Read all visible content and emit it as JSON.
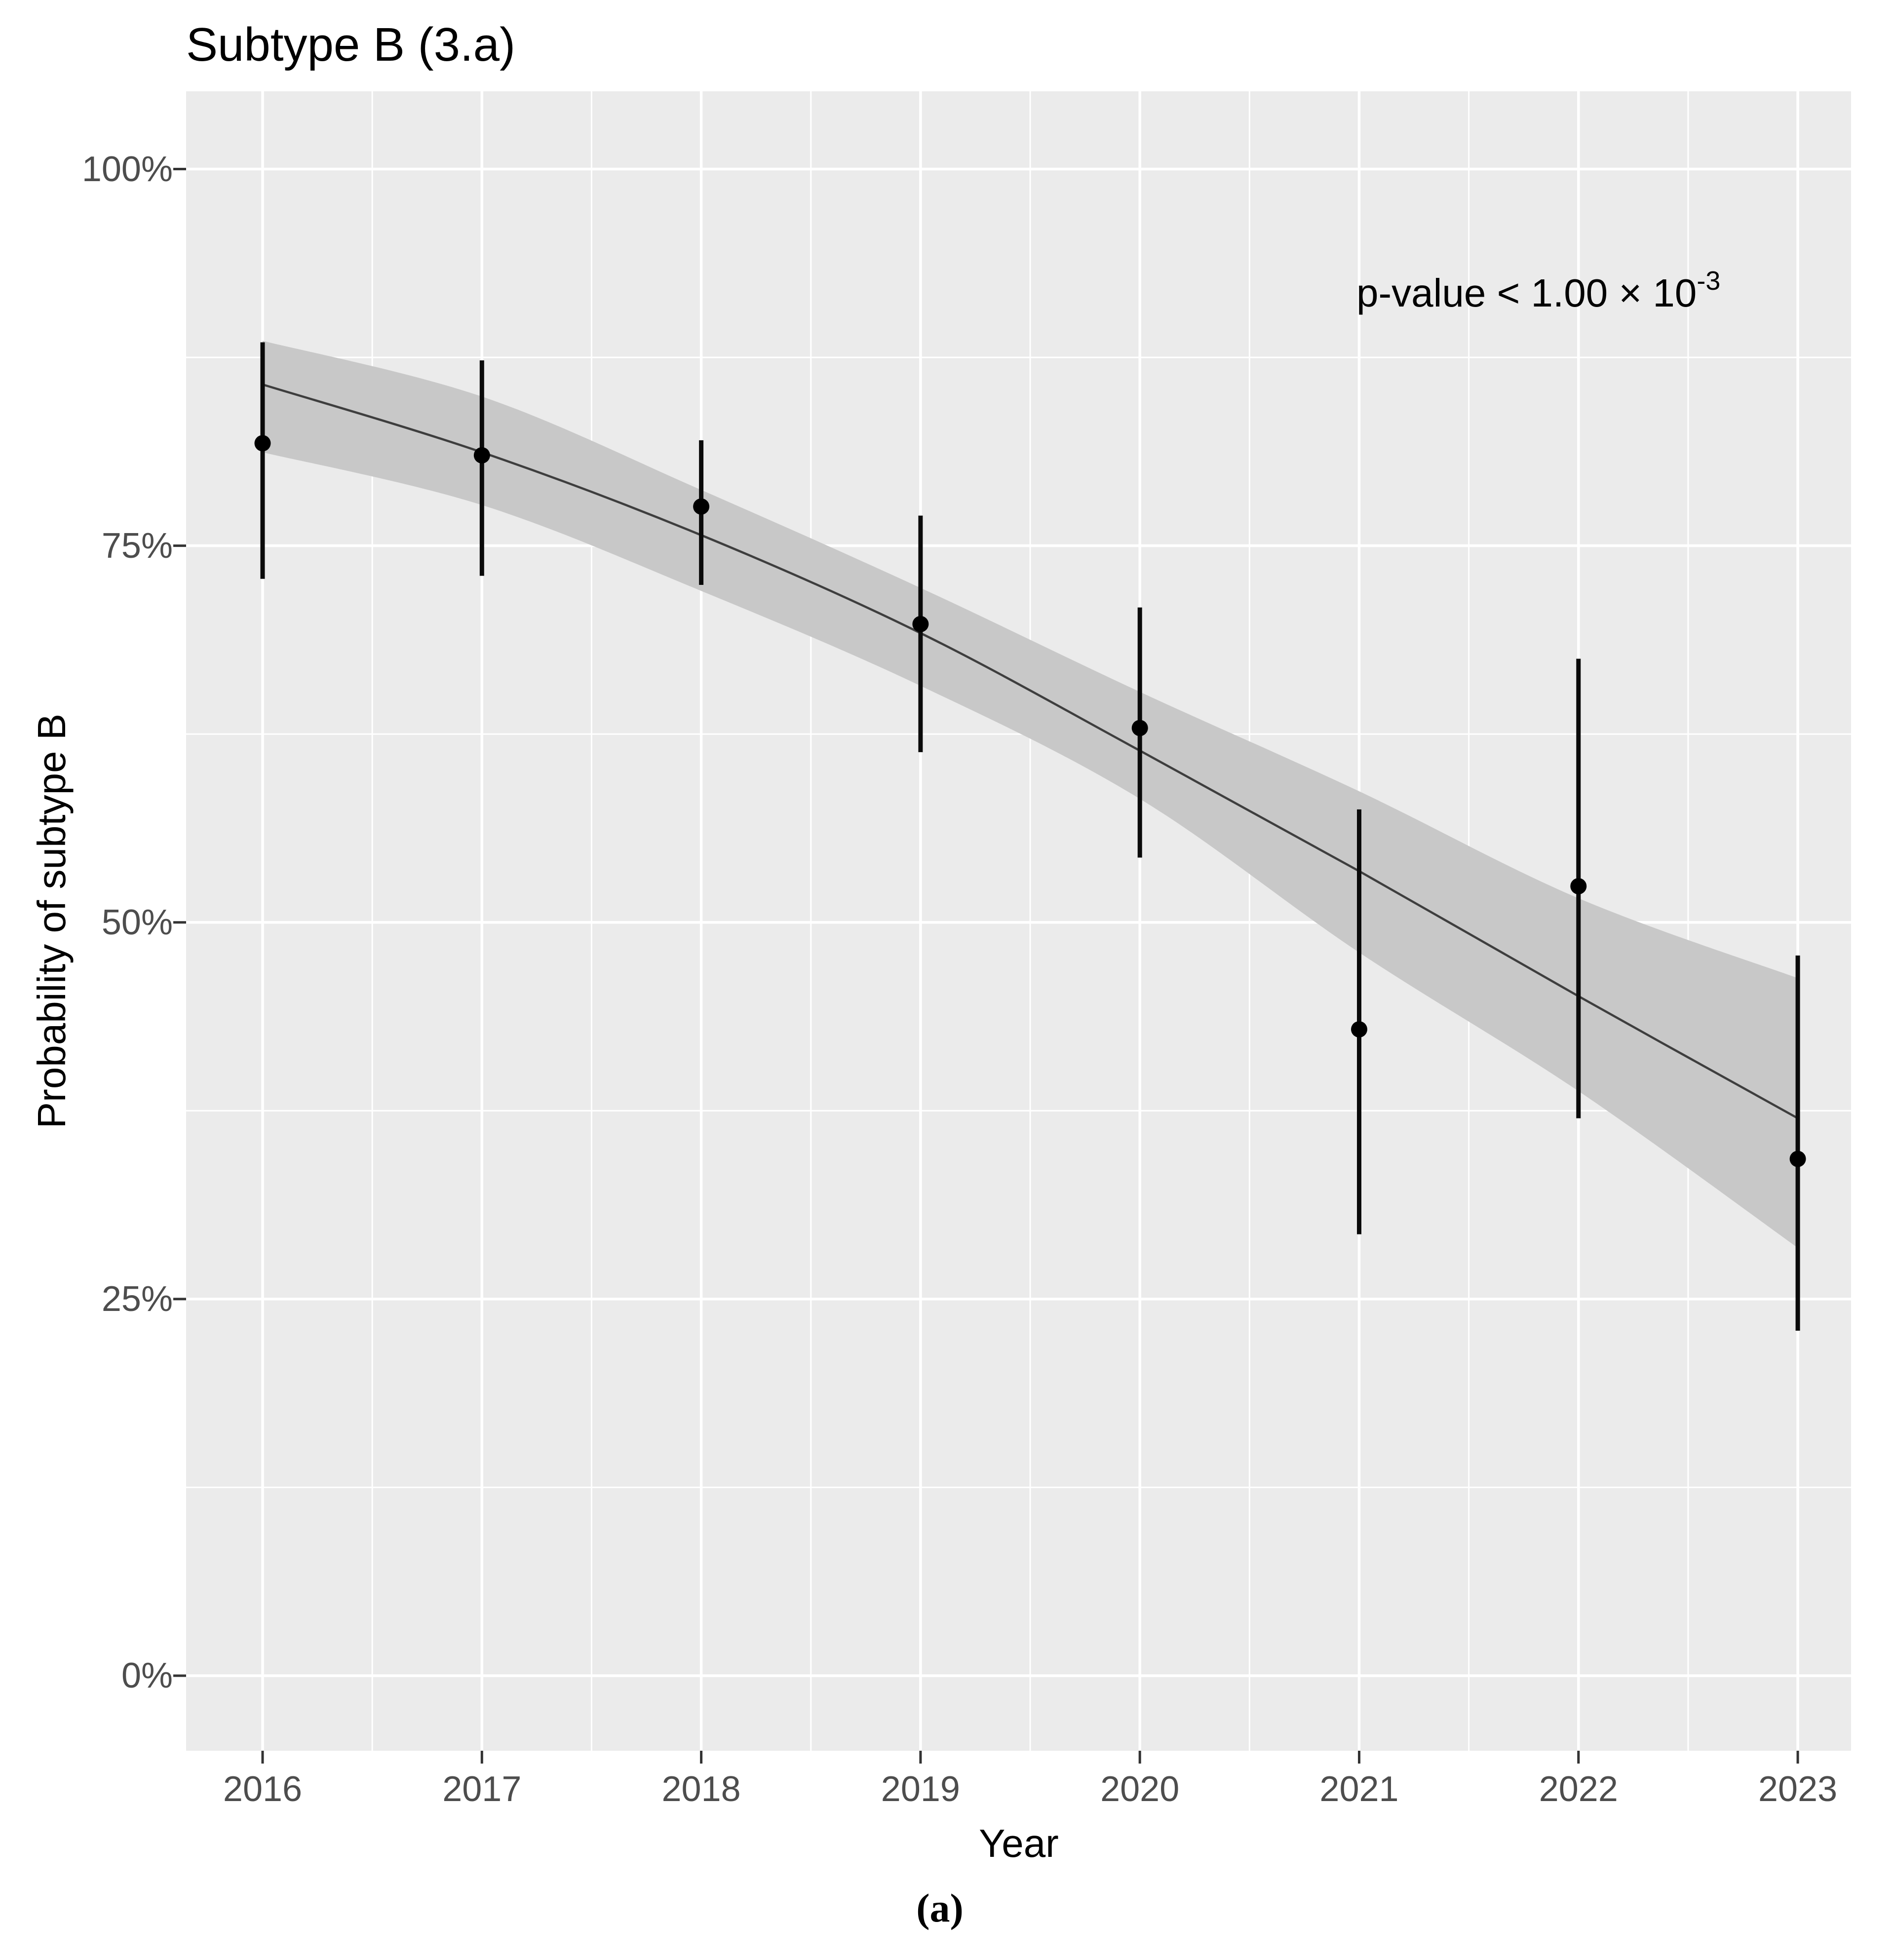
{
  "page": {
    "background": "#ffffff",
    "caption": "(a)"
  },
  "chart": {
    "title": "Subtype B (3.a)",
    "annotation": {
      "base": "p-value < 1.00 × 10",
      "exponent": "-3"
    },
    "x_axis": {
      "label": "Year",
      "tick_labels": [
        "2016",
        "2017",
        "2018",
        "2019",
        "2020",
        "2021",
        "2022",
        "2023"
      ]
    },
    "y_axis": {
      "label": "Probability of subtype B",
      "tick_labels": [
        "0%",
        "25%",
        "50%",
        "75%",
        "100%"
      ],
      "tick_values": [
        0,
        25,
        50,
        75,
        100
      ]
    },
    "colors": {
      "panel_background": "#EBEBEB",
      "gridline": "#FFFFFF",
      "ribbon": "#C8C8C8",
      "trend_line": "#3E3E3E",
      "point": "#000000",
      "error_bar": "#0A0A0A",
      "tick_mark": "#333333",
      "tick_text": "#4D4D4D",
      "title_text": "#000000"
    }
  },
  "chart_data": {
    "type": "scatter",
    "title": "Subtype B (3.a)",
    "xlabel": "Year",
    "ylabel": "Probability of subtype B",
    "annotation": "p-value < 1.00 × 10^-3",
    "x": [
      2016,
      2017,
      2018,
      2019,
      2020,
      2021,
      2022,
      2023
    ],
    "xlim": [
      2015.65,
      2023.25
    ],
    "ylim": [
      -5,
      105
    ],
    "y_unit": "percent",
    "grid": "on",
    "legend": "none",
    "series": [
      {
        "name": "observed_probability",
        "values": [
          81.8,
          81.0,
          77.6,
          69.8,
          62.9,
          42.9,
          52.4,
          34.3
        ]
      },
      {
        "name": "ci_lower",
        "values": [
          72.8,
          73.0,
          72.4,
          61.3,
          54.3,
          29.3,
          37.0,
          22.9
        ]
      },
      {
        "name": "ci_upper",
        "values": [
          88.5,
          87.3,
          82.0,
          77.0,
          70.9,
          57.5,
          67.5,
          47.8
        ]
      },
      {
        "name": "trend_fit",
        "values": [
          85.7,
          81.2,
          75.7,
          69.2,
          61.4,
          53.4,
          45.1,
          37.0
        ]
      },
      {
        "name": "trend_band_lower",
        "values": [
          81.2,
          77.7,
          72.0,
          65.7,
          58.2,
          48.0,
          38.8,
          28.4
        ]
      },
      {
        "name": "trend_band_upper",
        "values": [
          88.6,
          84.9,
          78.7,
          72.2,
          65.3,
          58.7,
          51.6,
          46.3
        ]
      }
    ],
    "x_minor_gridlines": [
      2016.5,
      2017.5,
      2018.5,
      2019.5,
      2020.5,
      2021.5,
      2022.5
    ],
    "y_minor_gridlines": [
      12.5,
      37.5,
      62.5,
      87.5
    ]
  }
}
